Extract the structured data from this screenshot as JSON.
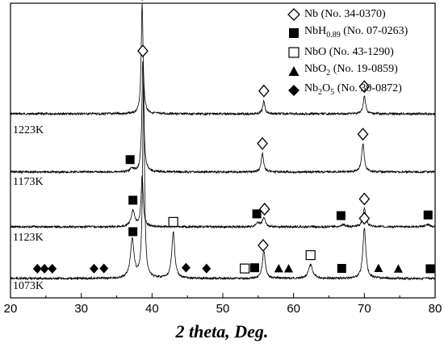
{
  "chart_data": {
    "type": "line",
    "xlabel": "2 theta, Deg.",
    "ylabel": "",
    "xlim": [
      20,
      80
    ],
    "xticks": [
      "20",
      "30",
      "40",
      "50",
      "60",
      "70",
      "80"
    ],
    "grid": false,
    "legend_position": "top-right",
    "legend": [
      {
        "marker": "open-diamond",
        "name": "Nb",
        "sub": "",
        "ref": "(No. 34-0370)"
      },
      {
        "marker": "filled-square",
        "name": "NbH",
        "sub": "0.89",
        "ref": "(No. 07-0263)"
      },
      {
        "marker": "open-square",
        "name": "NbO",
        "sub": "",
        "ref": "(No. 43-1290)"
      },
      {
        "marker": "filled-triangle",
        "name": "NbO",
        "sub": "2",
        "ref": "(No. 19-0859)"
      },
      {
        "marker": "filled-diamond",
        "name": "Nb",
        "sub": "2",
        "name2": "O",
        "sub2": "5",
        "ref": "(No. 30-0872)"
      }
    ],
    "series": [
      {
        "name": "1223K",
        "peaks": [
          {
            "x": 38.6,
            "height": 1.0,
            "width": 0.16
          },
          {
            "x": 55.8,
            "height": 0.12,
            "width": 0.18
          },
          {
            "x": 70.0,
            "height": 0.16,
            "width": 0.2
          }
        ],
        "markers": [
          {
            "type": "open-diamond",
            "x": 38.6
          },
          {
            "type": "open-diamond",
            "x": 55.8
          },
          {
            "type": "open-diamond",
            "x": 70.0
          }
        ]
      },
      {
        "name": "1173K",
        "peaks": [
          {
            "x": 37.2,
            "height": 0.03,
            "width": 0.3
          },
          {
            "x": 38.7,
            "height": 0.95,
            "width": 0.16
          },
          {
            "x": 55.6,
            "height": 0.16,
            "width": 0.2
          },
          {
            "x": 69.8,
            "height": 0.24,
            "width": 0.22
          }
        ],
        "markers": [
          {
            "type": "filled-square",
            "x": 36.9
          },
          {
            "type": "open-diamond",
            "x": 38.7
          },
          {
            "type": "open-diamond",
            "x": 55.6
          },
          {
            "type": "open-diamond",
            "x": 69.8
          }
        ]
      },
      {
        "name": "1123K",
        "peaks": [
          {
            "x": 37.3,
            "height": 0.22,
            "width": 0.3
          },
          {
            "x": 38.6,
            "height": 0.7,
            "width": 0.18
          },
          {
            "x": 55.0,
            "height": 0.05,
            "width": 0.35
          },
          {
            "x": 55.8,
            "height": 0.12,
            "width": 0.25
          },
          {
            "x": 67.0,
            "height": 0.03,
            "width": 0.4
          },
          {
            "x": 70.0,
            "height": 0.25,
            "width": 0.25
          },
          {
            "x": 79.0,
            "height": 0.03,
            "width": 0.4
          }
        ],
        "markers": [
          {
            "type": "filled-square",
            "x": 37.3
          },
          {
            "type": "filled-square",
            "x": 54.8
          },
          {
            "type": "open-diamond",
            "x": 55.9
          },
          {
            "type": "filled-square",
            "x": 66.7
          },
          {
            "type": "open-diamond",
            "x": 70.0
          },
          {
            "type": "filled-square",
            "x": 79.0
          }
        ]
      },
      {
        "name": "1073K",
        "peaks": [
          {
            "x": 37.2,
            "height": 0.2,
            "width": 0.3
          },
          {
            "x": 38.8,
            "height": 1.0,
            "width": 0.16
          },
          {
            "x": 43.0,
            "height": 0.24,
            "width": 0.25
          },
          {
            "x": 55.8,
            "height": 0.14,
            "width": 0.25
          },
          {
            "x": 62.4,
            "height": 0.07,
            "width": 0.35
          },
          {
            "x": 70.0,
            "height": 0.26,
            "width": 0.25
          }
        ],
        "markers": [
          {
            "type": "filled-diamond",
            "x": 23.8
          },
          {
            "type": "filled-diamond",
            "x": 24.8
          },
          {
            "type": "filled-diamond",
            "x": 25.9
          },
          {
            "type": "filled-diamond",
            "x": 31.8
          },
          {
            "type": "filled-diamond",
            "x": 33.2
          },
          {
            "type": "filled-square",
            "x": 37.3
          },
          {
            "type": "open-square",
            "x": 43.0
          },
          {
            "type": "filled-diamond",
            "x": 44.8
          },
          {
            "type": "filled-diamond",
            "x": 47.7
          },
          {
            "type": "open-square",
            "x": 53.1
          },
          {
            "type": "filled-square",
            "x": 54.5
          },
          {
            "type": "open-diamond",
            "x": 55.7
          },
          {
            "type": "filled-triangle",
            "x": 57.9
          },
          {
            "type": "filled-triangle",
            "x": 59.3
          },
          {
            "type": "open-square",
            "x": 62.4
          },
          {
            "type": "filled-square",
            "x": 66.8
          },
          {
            "type": "open-diamond",
            "x": 70.0
          },
          {
            "type": "filled-triangle",
            "x": 72.0
          },
          {
            "type": "filled-triangle",
            "x": 74.8
          },
          {
            "type": "filled-square",
            "x": 79.3
          }
        ]
      }
    ]
  }
}
